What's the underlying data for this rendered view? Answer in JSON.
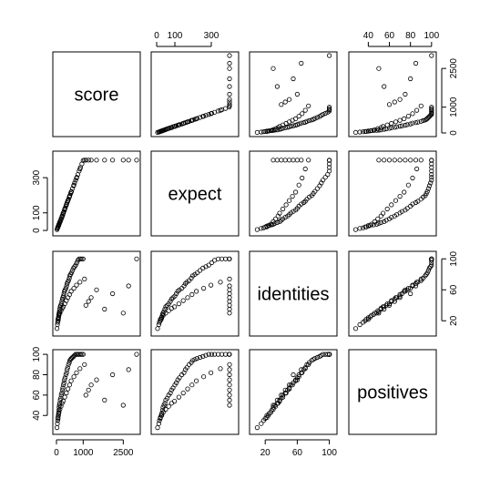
{
  "chart_data": {
    "type": "scatter",
    "variables": [
      "score",
      "expect",
      "identities",
      "positives"
    ],
    "axes": {
      "score": {
        "range": [
          0,
          3000
        ],
        "ticks": [
          0,
          1000,
          2500
        ],
        "tick_labels": [
          "0",
          "1000",
          "2500"
        ]
      },
      "expect": {
        "range": [
          -10,
          430
        ],
        "ticks": [
          0,
          100,
          300
        ],
        "tick_labels": [
          "0",
          "100",
          "300"
        ]
      },
      "identities": {
        "range": [
          5,
          105
        ],
        "ticks": [
          20,
          60,
          100
        ],
        "tick_labels": [
          "20",
          "60",
          "100"
        ]
      },
      "positives": {
        "range": [
          25,
          101
        ],
        "ticks": [
          40,
          60,
          80,
          100
        ],
        "tick_labels": [
          "40",
          "60",
          "80",
          "100"
        ]
      }
    },
    "top_axes": [
      "expect",
      "positives"
    ],
    "right_axes": [
      "score",
      "identities"
    ],
    "bottom_axes": [
      "score",
      "identities"
    ],
    "left_axes": [
      "expect",
      "positives"
    ],
    "grid": false,
    "legend": "none",
    "point_style": "open circle",
    "marker_color": "#000000",
    "points": {
      "score": [
        20,
        45,
        60,
        70,
        80,
        90,
        100,
        110,
        120,
        140,
        160,
        180,
        200,
        220,
        240,
        260,
        280,
        300,
        320,
        350,
        380,
        400,
        420,
        450,
        480,
        500,
        530,
        560,
        600,
        640,
        680,
        720,
        760,
        800,
        850,
        900,
        950,
        1000,
        1100,
        1200,
        1300,
        1500,
        1800,
        2100,
        2500,
        2700,
        3000,
        35,
        55,
        75,
        95,
        130,
        170,
        210,
        250,
        310,
        370,
        430,
        490,
        550,
        650,
        750,
        880,
        1050
      ],
      "expect": [
        5,
        15,
        20,
        25,
        28,
        32,
        35,
        40,
        45,
        50,
        58,
        66,
        75,
        82,
        90,
        100,
        108,
        116,
        125,
        138,
        150,
        158,
        166,
        178,
        190,
        198,
        210,
        222,
        238,
        254,
        270,
        286,
        302,
        318,
        338,
        358,
        378,
        398,
        400,
        400,
        400,
        400,
        400,
        400,
        400,
        400,
        400,
        12,
        20,
        28,
        36,
        50,
        66,
        82,
        98,
        122,
        146,
        170,
        194,
        218,
        258,
        298,
        350,
        400
      ],
      "identities": [
        10,
        18,
        20,
        22,
        25,
        28,
        30,
        32,
        35,
        38,
        40,
        42,
        45,
        48,
        50,
        52,
        55,
        58,
        60,
        62,
        65,
        68,
        70,
        72,
        75,
        78,
        80,
        82,
        85,
        88,
        90,
        92,
        95,
        98,
        100,
        100,
        100,
        100,
        40,
        45,
        50,
        60,
        35,
        55,
        30,
        65,
        100,
        15,
        22,
        24,
        27,
        30,
        33,
        36,
        38,
        42,
        46,
        50,
        54,
        58,
        62,
        66,
        70,
        74
      ],
      "positives": [
        28,
        35,
        37,
        40,
        42,
        45,
        48,
        50,
        52,
        55,
        57,
        60,
        62,
        65,
        67,
        70,
        72,
        75,
        77,
        80,
        82,
        85,
        87,
        90,
        92,
        94,
        95,
        96,
        97,
        98,
        99,
        100,
        100,
        100,
        100,
        100,
        100,
        100,
        60,
        65,
        70,
        75,
        55,
        80,
        50,
        85,
        100,
        32,
        38,
        40,
        43,
        46,
        49,
        52,
        54,
        58,
        62,
        66,
        70,
        74,
        78,
        82,
        86,
        90
      ]
    }
  }
}
